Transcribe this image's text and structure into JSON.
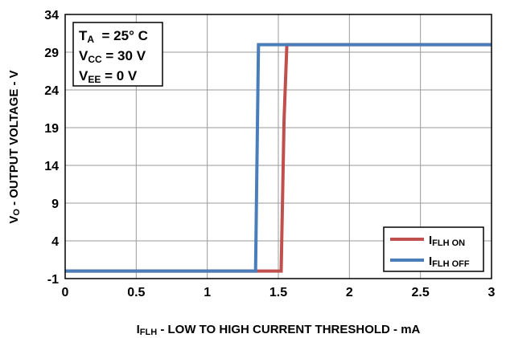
{
  "chart_data": {
    "type": "line",
    "title": "",
    "x_axis": {
      "label_main": "I",
      "label_sub": "FLH",
      "label_rest": " - LOW TO HIGH CURRENT THRESHOLD - mA",
      "range": [
        0,
        3
      ],
      "ticks": [
        0,
        0.5,
        1,
        1.5,
        2,
        2.5,
        3
      ],
      "tick_labels": [
        "0",
        "0.5",
        "1",
        "1.5",
        "2",
        "2.5",
        "3"
      ]
    },
    "y_axis": {
      "label_main": "V",
      "label_sub": "O",
      "label_rest": " - OUTPUT VOLTAGE - V",
      "range": [
        -1,
        34
      ],
      "ticks": [
        -1,
        4,
        9,
        14,
        19,
        24,
        29,
        34
      ],
      "tick_labels": [
        "-1",
        "4",
        "9",
        "14",
        "19",
        "24",
        "29",
        "34"
      ]
    },
    "grid": true,
    "legend_placement": "bottom-right",
    "annotation": [
      {
        "main": "T",
        "sub": "A",
        "rest": "  = 25° C"
      },
      {
        "main": "V",
        "sub": "CC",
        "rest": " = 30 V"
      },
      {
        "main": "V",
        "sub": "EE",
        "rest": " = 0 V"
      }
    ],
    "series": [
      {
        "name": "IFLH ON",
        "legend_main": "I",
        "legend_sub": "FLH ON",
        "color": "#c0504d",
        "x": [
          0,
          1.52,
          1.54,
          1.56,
          3
        ],
        "y": [
          0,
          0,
          20,
          30,
          30
        ]
      },
      {
        "name": "IFLH OFF",
        "legend_main": "I",
        "legend_sub": "FLH OFF",
        "color": "#4a7ebb",
        "x": [
          0,
          1.34,
          1.36,
          3
        ],
        "y": [
          0,
          0,
          30,
          30
        ]
      }
    ]
  }
}
